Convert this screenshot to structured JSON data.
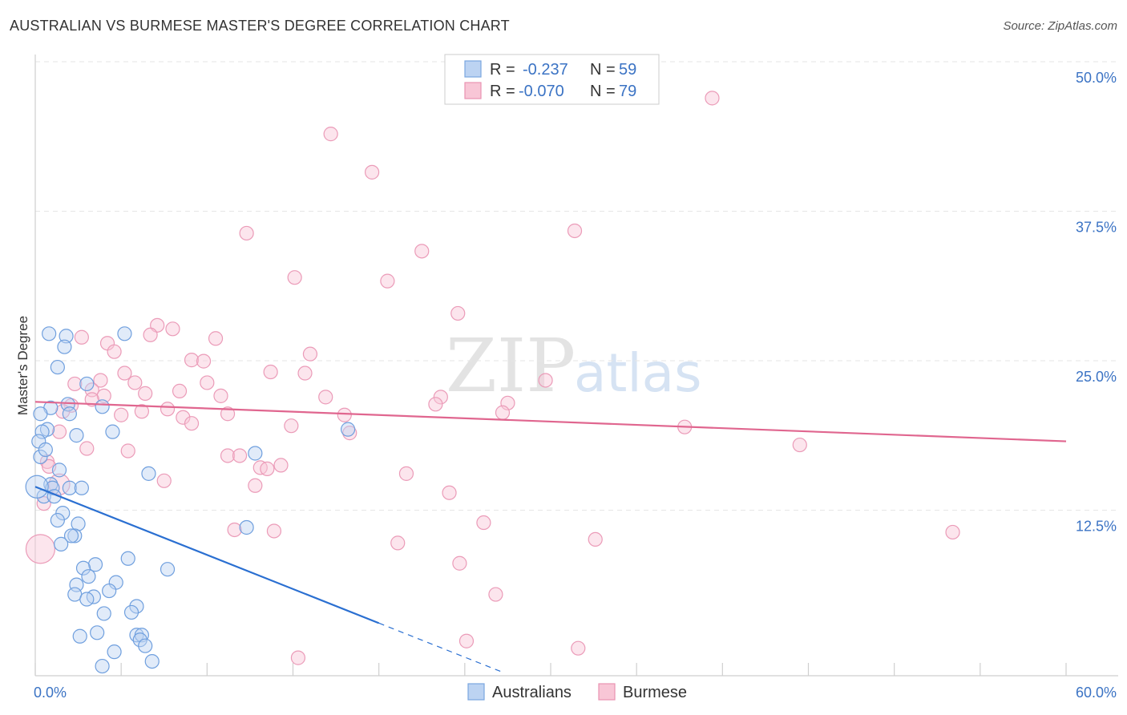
{
  "header": {
    "title": "AUSTRALIAN VS BURMESE MASTER'S DEGREE CORRELATION CHART",
    "source": "Source: ZipAtlas.com"
  },
  "legend": {
    "rows": [
      {
        "r_label": "R =",
        "r_value": "-0.237",
        "n_label": "N =",
        "n_value": "59"
      },
      {
        "r_label": "R =",
        "r_value": "-0.070",
        "n_label": "N =",
        "n_value": "79"
      }
    ]
  },
  "bottom_legend": {
    "items": [
      "Australians",
      "Burmese"
    ]
  },
  "watermark": {
    "zip": "ZIP",
    "atlas": "atlas"
  },
  "chart_data": {
    "type": "scatter",
    "title": "AUSTRALIAN VS BURMESE MASTER'S DEGREE CORRELATION CHART",
    "xlabel": "",
    "ylabel": "Master's Degree",
    "xlim": [
      0,
      60
    ],
    "ylim": [
      0,
      50
    ],
    "x_tick_labels": [
      "0.0%",
      "60.0%"
    ],
    "y_ticks": [
      12.5,
      25.0,
      37.5,
      50.0
    ],
    "y_tick_labels": [
      "12.5%",
      "25.0%",
      "37.5%",
      "50.0%"
    ],
    "grid": true,
    "colors": {
      "australians": "#5b8fd6",
      "burmese": "#e886a8",
      "aus_line": "#2a6fd1",
      "bur_line": "#e0668f"
    },
    "series": [
      {
        "name": "Australians",
        "r": -0.237,
        "n": 59,
        "trend": {
          "x0": 0,
          "y0": 15.8,
          "x1": 20,
          "y1": 4.4,
          "dash_to_x": 27.3
        },
        "points": [
          [
            0.8,
            28.6
          ],
          [
            1.8,
            28.4
          ],
          [
            5.2,
            28.6
          ],
          [
            1.7,
            27.5
          ],
          [
            1.3,
            25.8
          ],
          [
            3.0,
            24.4
          ],
          [
            0.9,
            22.4
          ],
          [
            1.9,
            22.7
          ],
          [
            3.9,
            22.5
          ],
          [
            0.3,
            21.9
          ],
          [
            2.0,
            21.9
          ],
          [
            0.7,
            20.6
          ],
          [
            0.4,
            20.4
          ],
          [
            4.5,
            20.4
          ],
          [
            18.2,
            20.6
          ],
          [
            0.2,
            19.6
          ],
          [
            12.8,
            18.6
          ],
          [
            0.3,
            18.3
          ],
          [
            1.4,
            17.2
          ],
          [
            6.6,
            16.9
          ],
          [
            0.9,
            16.0
          ],
          [
            1.0,
            15.7
          ],
          [
            2.0,
            15.7
          ],
          [
            2.7,
            15.7
          ],
          [
            0.5,
            15.0
          ],
          [
            1.1,
            15.0
          ],
          [
            1.6,
            13.6
          ],
          [
            1.3,
            13.0
          ],
          [
            2.5,
            12.7
          ],
          [
            12.3,
            12.4
          ],
          [
            2.3,
            11.7
          ],
          [
            2.1,
            11.7
          ],
          [
            1.5,
            11.0
          ],
          [
            5.4,
            9.8
          ],
          [
            3.5,
            9.3
          ],
          [
            7.7,
            8.9
          ],
          [
            2.8,
            9.0
          ],
          [
            3.1,
            8.3
          ],
          [
            4.7,
            7.8
          ],
          [
            2.4,
            7.6
          ],
          [
            4.3,
            7.1
          ],
          [
            2.3,
            6.8
          ],
          [
            3.4,
            6.6
          ],
          [
            3.0,
            6.4
          ],
          [
            5.9,
            5.8
          ],
          [
            5.6,
            5.3
          ],
          [
            4.0,
            5.2
          ],
          [
            3.6,
            3.6
          ],
          [
            2.6,
            3.3
          ],
          [
            5.9,
            3.4
          ],
          [
            6.2,
            3.4
          ],
          [
            6.1,
            3.0
          ],
          [
            6.4,
            2.5
          ],
          [
            4.6,
            2.0
          ],
          [
            6.8,
            1.2
          ],
          [
            3.9,
            0.8
          ],
          [
            0.1,
            15.8
          ],
          [
            0.6,
            18.9
          ],
          [
            2.4,
            20.1
          ]
        ]
      },
      {
        "name": "Burmese",
        "r": -0.07,
        "n": 79,
        "trend": {
          "x0": 0,
          "y0": 22.9,
          "x1": 60,
          "y1": 19.6
        },
        "points": [
          [
            39.4,
            48.3
          ],
          [
            17.2,
            45.3
          ],
          [
            19.6,
            42.1
          ],
          [
            12.3,
            37.0
          ],
          [
            31.4,
            37.2
          ],
          [
            22.5,
            35.5
          ],
          [
            15.1,
            33.3
          ],
          [
            20.5,
            33.0
          ],
          [
            24.6,
            30.3
          ],
          [
            7.1,
            29.3
          ],
          [
            8.0,
            29.0
          ],
          [
            6.7,
            28.5
          ],
          [
            2.7,
            28.3
          ],
          [
            10.5,
            28.2
          ],
          [
            4.2,
            27.8
          ],
          [
            4.6,
            27.1
          ],
          [
            16.0,
            26.9
          ],
          [
            9.1,
            26.4
          ],
          [
            9.8,
            26.3
          ],
          [
            5.2,
            25.3
          ],
          [
            13.7,
            25.4
          ],
          [
            15.7,
            25.3
          ],
          [
            2.3,
            24.4
          ],
          [
            3.8,
            24.7
          ],
          [
            5.8,
            24.5
          ],
          [
            10.0,
            24.5
          ],
          [
            29.7,
            24.7
          ],
          [
            3.3,
            23.9
          ],
          [
            4.0,
            23.4
          ],
          [
            3.3,
            23.1
          ],
          [
            8.4,
            23.8
          ],
          [
            6.4,
            23.6
          ],
          [
            10.8,
            23.4
          ],
          [
            16.9,
            23.3
          ],
          [
            23.6,
            23.3
          ],
          [
            2.1,
            22.6
          ],
          [
            1.6,
            22.1
          ],
          [
            7.7,
            22.3
          ],
          [
            6.2,
            22.1
          ],
          [
            23.3,
            22.7
          ],
          [
            27.5,
            22.8
          ],
          [
            5.0,
            21.8
          ],
          [
            11.2,
            21.9
          ],
          [
            8.6,
            21.6
          ],
          [
            18.0,
            21.8
          ],
          [
            27.2,
            22.0
          ],
          [
            9.1,
            21.1
          ],
          [
            14.9,
            20.9
          ],
          [
            18.3,
            20.3
          ],
          [
            37.8,
            20.8
          ],
          [
            1.4,
            20.4
          ],
          [
            3.0,
            19.0
          ],
          [
            5.4,
            18.8
          ],
          [
            44.5,
            19.3
          ],
          [
            11.2,
            18.4
          ],
          [
            11.9,
            18.4
          ],
          [
            0.7,
            17.9
          ],
          [
            0.8,
            17.5
          ],
          [
            13.1,
            17.4
          ],
          [
            14.3,
            17.6
          ],
          [
            13.5,
            17.3
          ],
          [
            21.6,
            16.9
          ],
          [
            7.5,
            16.3
          ],
          [
            12.8,
            15.9
          ],
          [
            24.1,
            15.3
          ],
          [
            0.5,
            14.4
          ],
          [
            26.1,
            12.8
          ],
          [
            11.6,
            12.2
          ],
          [
            13.9,
            12.1
          ],
          [
            53.4,
            12.0
          ],
          [
            32.6,
            11.4
          ],
          [
            21.1,
            11.1
          ],
          [
            24.7,
            9.4
          ],
          [
            26.8,
            6.8
          ],
          [
            25.1,
            2.9
          ],
          [
            31.6,
            2.3
          ],
          [
            15.3,
            1.5
          ],
          [
            0.3,
            10.6
          ],
          [
            1.4,
            16.0
          ]
        ]
      }
    ]
  }
}
